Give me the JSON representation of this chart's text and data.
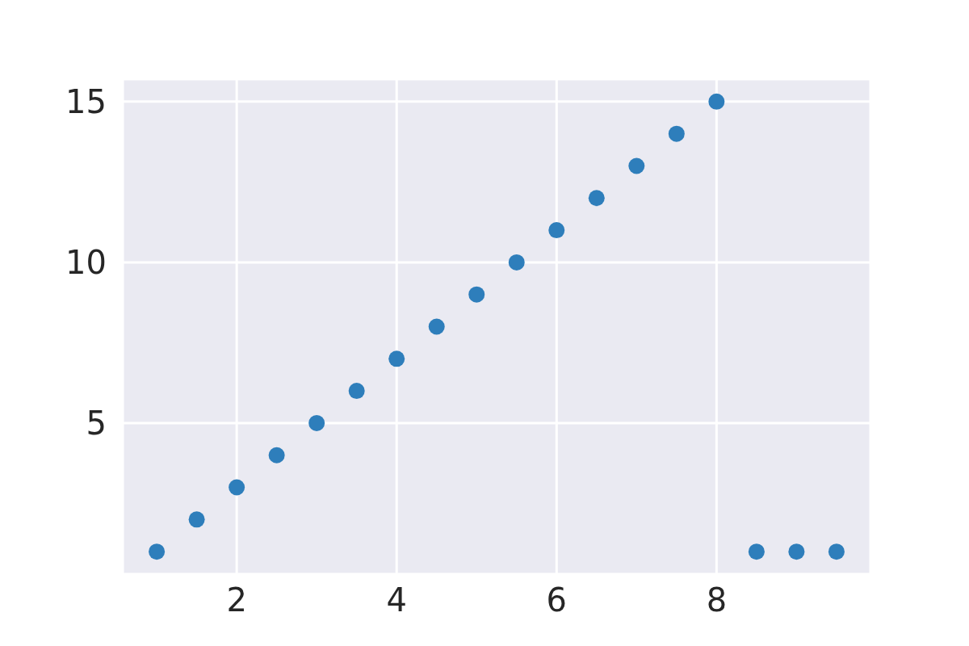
{
  "chart_data": {
    "type": "scatter",
    "x": [
      1,
      1.5,
      2,
      2.5,
      3,
      3.5,
      4,
      4.5,
      5,
      5.5,
      6,
      6.5,
      7,
      7.5,
      8,
      8.5,
      9,
      9.5
    ],
    "series": [
      {
        "color": "#2e7ebb",
        "values": [
          1,
          2,
          3,
          4,
          5,
          6,
          7,
          8,
          9,
          10,
          11,
          12,
          13,
          14,
          15,
          1,
          1,
          1
        ]
      }
    ],
    "xlim": [
      0.575,
      9.925
    ],
    "xticks": [
      2,
      4,
      6,
      8
    ],
    "ylim": [
      0.3,
      15.7
    ],
    "yticks": [
      5,
      10,
      15
    ],
    "grid": true,
    "marker": "circle",
    "legend": false
  }
}
